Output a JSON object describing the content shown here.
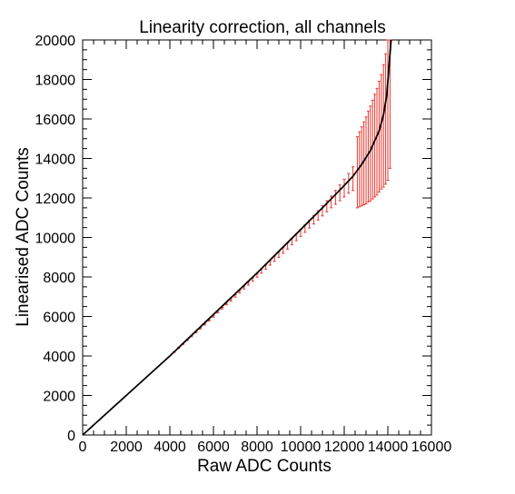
{
  "chart_data": {
    "type": "line",
    "title": "Linearity correction, all channels",
    "xlabel": "Raw ADC Counts",
    "ylabel": "Linearised ADC Counts",
    "xlim": [
      0,
      16000
    ],
    "ylim": [
      0,
      20000
    ],
    "x_ticks": [
      0,
      2000,
      4000,
      6000,
      8000,
      10000,
      12000,
      14000,
      16000
    ],
    "x_tick_labels": [
      "0",
      "2000",
      "4000",
      "6000",
      "8000",
      "10000",
      "12000",
      "14000",
      "16000"
    ],
    "y_ticks": [
      0,
      2000,
      4000,
      6000,
      8000,
      10000,
      12000,
      14000,
      16000,
      18000,
      20000
    ],
    "y_tick_labels": [
      "0",
      "2000",
      "4000",
      "6000",
      "8000",
      "10000",
      "12000",
      "14000",
      "16000",
      "18000",
      "20000"
    ],
    "grid": false,
    "series": [
      {
        "role": "fit-curve",
        "color": "#000000",
        "x": [
          0,
          2000,
          4000,
          6000,
          8000,
          9000,
          10000,
          11000,
          11800,
          12400,
          12800,
          13200,
          13600,
          13800,
          13950,
          14050,
          14150
        ],
        "y": [
          0,
          2000,
          4000,
          6100,
          8200,
          9300,
          10400,
          11500,
          12400,
          13100,
          13700,
          14400,
          15400,
          16200,
          17200,
          18600,
          20000
        ]
      },
      {
        "role": "data-points-with-errors",
        "color": "#e8352e",
        "x": [
          4200,
          4400,
          4600,
          4800,
          5000,
          5200,
          5400,
          5600,
          5800,
          6000,
          6200,
          6400,
          6600,
          6800,
          7000,
          7200,
          7400,
          7600,
          7800,
          8000,
          8200,
          8400,
          8600,
          8800,
          9000,
          9200,
          9400,
          9600,
          9800,
          10000,
          10200,
          10400,
          10600,
          10800,
          11000,
          11200,
          11400,
          11600,
          11800,
          12000,
          12200,
          12400,
          12600,
          12700,
          12800,
          12900,
          13000,
          13100,
          13200,
          13300,
          13400,
          13500,
          13600,
          13700,
          13800,
          13900,
          14000,
          14100
        ],
        "y": [
          4200,
          4400,
          4600,
          4800,
          5000,
          5200,
          5400,
          5600,
          5800,
          6000,
          6220,
          6420,
          6630,
          6830,
          7040,
          7250,
          7450,
          7660,
          7870,
          8080,
          8290,
          8500,
          8710,
          8920,
          9140,
          9350,
          9570,
          9790,
          10010,
          10230,
          10450,
          10680,
          10900,
          11120,
          11350,
          11580,
          11800,
          12030,
          12260,
          12500,
          12740,
          12980,
          13300,
          13450,
          13600,
          13750,
          13900,
          14100,
          14250,
          14450,
          14650,
          14850,
          15100,
          15350,
          15650,
          16000,
          16500,
          18000
        ],
        "yerr": [
          20,
          20,
          20,
          20,
          30,
          30,
          30,
          30,
          30,
          40,
          40,
          40,
          40,
          50,
          60,
          60,
          60,
          70,
          80,
          90,
          100,
          100,
          110,
          130,
          150,
          150,
          160,
          160,
          170,
          180,
          190,
          200,
          220,
          240,
          260,
          280,
          300,
          350,
          400,
          450,
          500,
          600,
          1800,
          1900,
          2000,
          2100,
          2200,
          2300,
          2400,
          2500,
          2600,
          2700,
          2800,
          2900,
          3100,
          3300,
          3600,
          4500
        ]
      }
    ]
  }
}
